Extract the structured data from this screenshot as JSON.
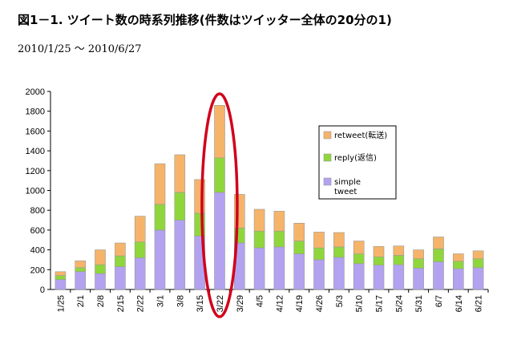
{
  "header": {
    "title": "図1－1. ツイート数の時系列推移(件数はツイッター全体の20分の1)",
    "period": "2010/1/25  〜  2010/6/27"
  },
  "chart_data": {
    "type": "bar",
    "stacked": true,
    "categories": [
      "1/25",
      "2/1",
      "2/8",
      "2/15",
      "2/22",
      "3/1",
      "3/8",
      "3/15",
      "3/22",
      "3/29",
      "4/5",
      "4/12",
      "4/19",
      "4/26",
      "5/3",
      "5/10",
      "5/17",
      "5/24",
      "5/31",
      "6/7",
      "6/14",
      "6/21"
    ],
    "series": [
      {
        "name": "simple tweet",
        "color": "#b3a2f0",
        "values": [
          100,
          180,
          160,
          230,
          320,
          600,
          700,
          540,
          980,
          470,
          420,
          430,
          360,
          300,
          325,
          260,
          245,
          250,
          215,
          280,
          210,
          220
        ]
      },
      {
        "name": "reply(返信)",
        "color": "#8fd63c",
        "values": [
          40,
          40,
          90,
          110,
          160,
          260,
          280,
          230,
          350,
          150,
          170,
          160,
          130,
          120,
          105,
          100,
          85,
          95,
          95,
          130,
          75,
          90
        ]
      },
      {
        "name": "retweet(転送)",
        "color": "#f6b46a",
        "values": [
          40,
          70,
          150,
          130,
          260,
          410,
          380,
          340,
          530,
          340,
          220,
          200,
          180,
          160,
          145,
          130,
          105,
          95,
          90,
          120,
          75,
          80
        ]
      }
    ],
    "yticks": [
      0,
      200,
      400,
      600,
      800,
      1000,
      1200,
      1400,
      1600,
      1800,
      2000
    ],
    "ylim": [
      0,
      2000
    ],
    "legend_position": "right",
    "highlight": {
      "category": "3/22",
      "color": "#d0021b",
      "shape": "ellipse"
    }
  }
}
